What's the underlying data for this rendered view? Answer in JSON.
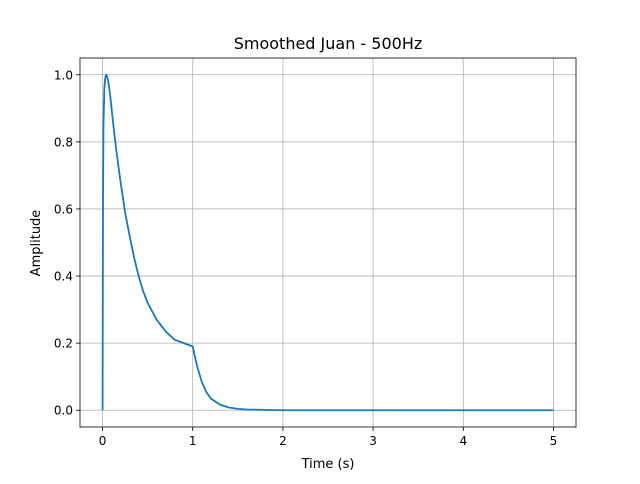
{
  "chart_data": {
    "type": "line",
    "title": "Smoothed Juan - 500Hz",
    "xlabel": "Time (s)",
    "ylabel": "Amplitude",
    "xlim": [
      -0.25,
      5.25
    ],
    "ylim": [
      -0.05,
      1.05
    ],
    "xticks": [
      0,
      1,
      2,
      3,
      4,
      5
    ],
    "xtick_labels": [
      "0",
      "1",
      "2",
      "3",
      "4",
      "5"
    ],
    "yticks": [
      0.0,
      0.2,
      0.4,
      0.6,
      0.8,
      1.0
    ],
    "ytick_labels": [
      "0.0",
      "0.2",
      "0.4",
      "0.6",
      "0.8",
      "1.0"
    ],
    "grid": true,
    "series": [
      {
        "color": "#1f77b4",
        "x": [
          0,
          0.005,
          0.01,
          0.02,
          0.03,
          0.04,
          0.05,
          0.06,
          0.08,
          0.1,
          0.12,
          0.15,
          0.2,
          0.25,
          0.3,
          0.35,
          0.4,
          0.45,
          0.5,
          0.6,
          0.7,
          0.8,
          0.9,
          1.0,
          1.02,
          1.05,
          1.1,
          1.15,
          1.2,
          1.3,
          1.4,
          1.5,
          1.6,
          1.8,
          2.0,
          2.5,
          3.0,
          3.5,
          4.0,
          4.5,
          5.0
        ],
        "y": [
          0.0,
          0.6,
          0.85,
          0.96,
          0.99,
          1.0,
          0.995,
          0.985,
          0.95,
          0.9,
          0.85,
          0.78,
          0.68,
          0.59,
          0.52,
          0.455,
          0.4,
          0.355,
          0.32,
          0.27,
          0.235,
          0.21,
          0.2,
          0.19,
          0.165,
          0.13,
          0.085,
          0.055,
          0.035,
          0.017,
          0.008,
          0.004,
          0.002,
          0.001,
          0.0,
          0.0,
          0.0,
          0.0,
          0.0,
          0.0,
          0.0
        ]
      }
    ]
  }
}
